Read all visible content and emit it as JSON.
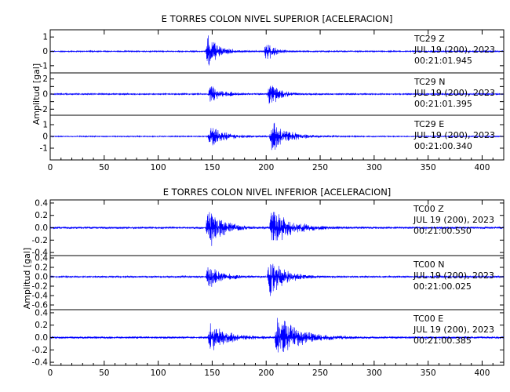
{
  "chart_data": [
    {
      "type": "line",
      "title": "E TORRES COLON NIVEL SUPERIOR [ACELERACION]",
      "ylabel": "Amplitud [gal]",
      "xlim": [
        0,
        420
      ],
      "xticks": [
        0,
        50,
        100,
        150,
        200,
        250,
        300,
        350,
        400
      ],
      "series_color": "#0000ff",
      "panels": [
        {
          "name": "TC29 Z",
          "station": "TC29",
          "component": "Z",
          "date": "JUL 19 (200), 2023",
          "time": "00:21:01.945",
          "ylim": [
            -1.5,
            1.5
          ],
          "yticks": [
            -1,
            0,
            1
          ],
          "ylabels": [
            "-1",
            "0",
            "1"
          ],
          "noise": 0.05,
          "bursts": [
            {
              "t": 146,
              "amp": 1.3,
              "dur": 10
            },
            {
              "t": 200,
              "amp": 0.85,
              "dur": 7
            }
          ]
        },
        {
          "name": "TC29 N",
          "station": "TC29",
          "component": "N",
          "date": "JUL 19 (200), 2023",
          "time": "00:21:01.395",
          "ylim": [
            -2.8,
            2.8
          ],
          "yticks": [
            -2,
            -1,
            0,
            1,
            2
          ],
          "ylabels": [
            "-2",
            "",
            "0",
            "",
            "2"
          ],
          "noise": 0.1,
          "bursts": [
            {
              "t": 148,
              "amp": 1.2,
              "dur": 12
            },
            {
              "t": 203,
              "amp": 2.3,
              "dur": 8
            }
          ]
        },
        {
          "name": "TC29 E",
          "station": "TC29",
          "component": "E",
          "date": "JUL 19 (200), 2023",
          "time": "00:21:00.340",
          "ylim": [
            -2.0,
            1.8
          ],
          "yticks": [
            -1,
            0,
            1
          ],
          "ylabels": [
            "-1",
            "0",
            "1"
          ],
          "noise": 0.05,
          "bursts": [
            {
              "t": 148,
              "amp": 1.0,
              "dur": 14
            },
            {
              "t": 205,
              "amp": 1.5,
              "dur": 14
            }
          ]
        }
      ]
    },
    {
      "type": "line",
      "title": "E TORRES COLON NIVEL INFERIOR [ACELERACION]",
      "ylabel": "Amplitud [gal]",
      "xlim": [
        0,
        420
      ],
      "xticks": [
        0,
        50,
        100,
        150,
        200,
        250,
        300,
        350,
        400
      ],
      "series_color": "#0000ff",
      "panels": [
        {
          "name": "TC00 Z",
          "station": "TC00",
          "component": "Z",
          "date": "JUL 19 (200), 2023",
          "time": "00:21:00.550",
          "ylim": [
            -0.45,
            0.45
          ],
          "yticks": [
            -0.4,
            -0.2,
            0.0,
            0.2,
            0.4
          ],
          "ylabels": [
            "-0.4",
            "-0.2",
            "0.0",
            "0.2",
            "0.4"
          ],
          "noise": 0.02,
          "bursts": [
            {
              "t": 146,
              "amp": 0.38,
              "dur": 12
            },
            {
              "t": 205,
              "amp": 0.35,
              "dur": 16
            }
          ]
        },
        {
          "name": "TC00 N",
          "station": "TC00",
          "component": "N",
          "date": "JUL 19 (200), 2023",
          "time": "00:21:00.025",
          "ylim": [
            -0.7,
            0.45
          ],
          "yticks": [
            -0.6,
            -0.4,
            -0.2,
            0.0,
            0.2,
            0.4
          ],
          "ylabels": [
            "-0.6",
            "-0.4",
            "-0.2",
            "0.0",
            "0.2",
            "0.4"
          ],
          "noise": 0.02,
          "bursts": [
            {
              "t": 146,
              "amp": 0.3,
              "dur": 12
            },
            {
              "t": 203,
              "amp": 0.55,
              "dur": 12
            }
          ]
        },
        {
          "name": "TC00 E",
          "station": "TC00",
          "component": "E",
          "date": "JUL 19 (200), 2023",
          "time": "00:21:00.385",
          "ylim": [
            -0.45,
            0.45
          ],
          "yticks": [
            -0.4,
            -0.2,
            0.0,
            0.2,
            0.4
          ],
          "ylabels": [
            "-0.4",
            "-0.2",
            "0.0",
            "0.2",
            "0.4"
          ],
          "noise": 0.02,
          "bursts": [
            {
              "t": 148,
              "amp": 0.28,
              "dur": 14
            },
            {
              "t": 210,
              "amp": 0.4,
              "dur": 18
            }
          ]
        }
      ]
    }
  ]
}
